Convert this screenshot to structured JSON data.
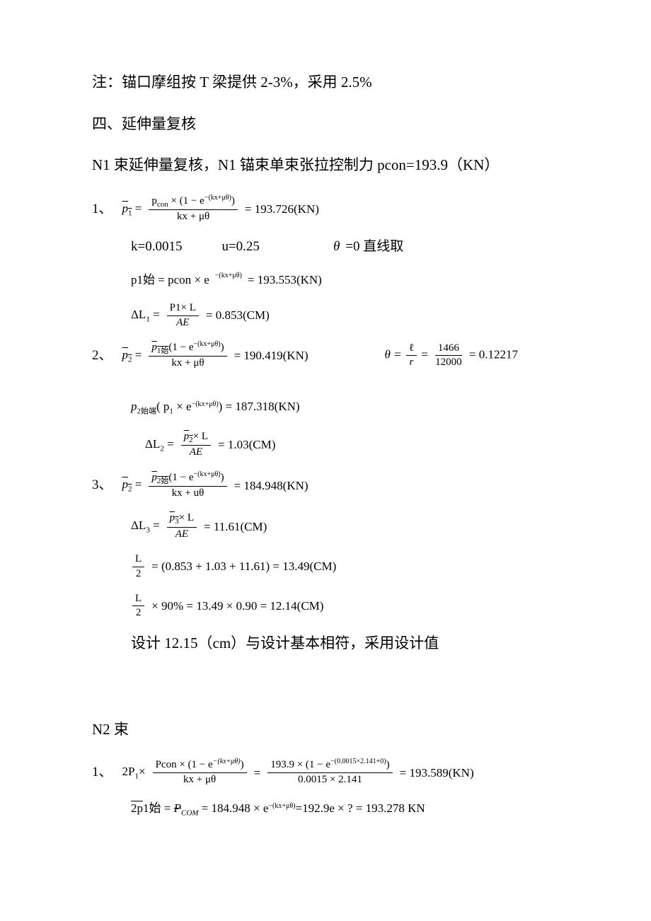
{
  "note_line": "注：锚口摩组按 T 梁提供 2-3%，采用 2.5%",
  "section4_title": "四、延伸量复核",
  "n1_intro": "N1 束延伸量复核，N1 锚束单束张拉控制力 pcon=193.9（KN）",
  "item1": {
    "prefix": "1、",
    "p1_bar": "p",
    "p1_sub": "1",
    "num1": "p",
    "num1_sub": "con",
    "num1_rest": " × (1 − e",
    "exp1": "−(kx+μθ)",
    "close1": ")",
    "den1": "kx + μθ",
    "result1": " = 193.726(KN)",
    "params": "k=0.0015",
    "params2": "u=0.25",
    "params3": "θ=0 直线取",
    "p1shi": "p1始 = pcon × e",
    "p1shi_exp": "−(kx+μθ)",
    "p1shi_result": " = 193.553(KN)",
    "dl1_label": "ΔL",
    "dl1_sub": "1",
    "dl1_eq": " = ",
    "dl1_num": "P1× L",
    "dl1_den": "AE",
    "dl1_result": " = 0.853(CM)"
  },
  "item2": {
    "prefix": "2、",
    "p2_bar": "p",
    "p2_sub": "2",
    "num2_bar": "p",
    "num2_sub": "1始",
    "num2_rest": "(1 − e",
    "exp2": "−(kx+μθ)",
    "close2": ")",
    "den2": "kx + μθ",
    "result2": " = 190.419(KN)",
    "theta_eq": "θ = ",
    "theta_num": "ℓ",
    "theta_den": "r",
    "theta_eq2": " = ",
    "theta_num2": "1466",
    "theta_den2": "12000",
    "theta_result": " = 0.12217",
    "p2shi": "p",
    "p2shi_sub": "2始端",
    "p2shi_mid": "( p",
    "p2shi_sub2": "1",
    "p2shi_rest": "  × e",
    "p2shi_exp": "−(kx+μθ)",
    "p2shi_result": ") = 187.318(KN)",
    "dl2_label": "ΔL",
    "dl2_sub": "2",
    "dl2_eq": " = ",
    "dl2_num_bar": "p",
    "dl2_num_sub": "2",
    "dl2_num_rest": "× L",
    "dl2_den": "AE",
    "dl2_result": " = 1.03(CM)"
  },
  "item3": {
    "prefix": "3、",
    "p2_bar": "p",
    "p2_sub": "2",
    "num3_bar": "p",
    "num3_sub": "2始",
    "num3_rest": "(1 − e",
    "exp3": "−(kx+μθ)",
    "close3": ")",
    "den3": "kx + uθ",
    "result3": " = 184.948(KN)",
    "dl3_label": "ΔL",
    "dl3_sub": "3",
    "dl3_eq": " = ",
    "dl3_num_bar": "p",
    "dl3_num_sub": "3",
    "dl3_num_rest": "× L",
    "dl3_den": "AE",
    "dl3_result": " = 11.61(CM)",
    "half_l_num": "L",
    "half_l_den": "2",
    "half_l_result": " = (0.853 + 1.03 + 11.61) = 13.49(CM)",
    "half_l90_num": "L",
    "half_l90_den": "2",
    "half_l90_mid": "× 90% = 13.49 × 0.90 = 12.14(CM)",
    "design_note": "设计 12.15（cm）与设计基本相符，采用设计值"
  },
  "n2_title": "N2 束",
  "n2_item1": {
    "prefix": "1、",
    "lhs": "2P",
    "lhs_sub": "1",
    "lhs_mid": "× ",
    "num1": "Pcon × (1 − e",
    "exp1": "−(kx+μθ)",
    "close1": ")",
    "den1": "kx + μθ",
    "eq1": " = ",
    "num2": "193.9 × (1 − e",
    "exp2": "−(0.0015×2.141+0)",
    "close2": ")",
    "den2": "0.0015 × 2.141",
    "result": " = 193.589(KN)",
    "line2_bar": "2p",
    "line2_rest1": "1始 = ",
    "line2_del": "P",
    "line2_com_sub": "COM",
    "line2_rest2": " = 184.948 × e",
    "line2_exp": "−(kx+μθ)",
    "line2_rest3": "=192.9e × ? = 193.278  KN"
  },
  "colors": {
    "text": "#000000",
    "background": "#ffffff"
  },
  "fonts": {
    "chinese": "SimSun",
    "math": "Times New Roman",
    "base_size_pt": 19,
    "formula_size_pt": 17
  }
}
